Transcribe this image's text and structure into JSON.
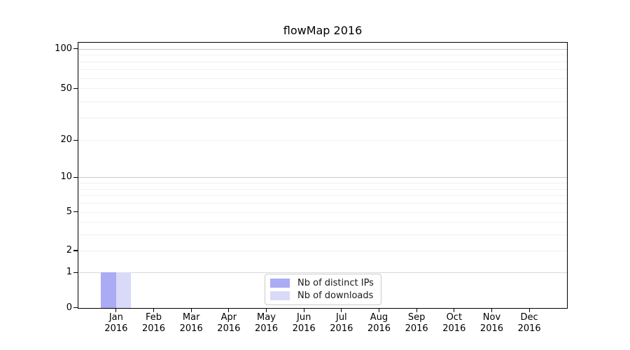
{
  "title": "flowMap 2016",
  "chart_data": {
    "type": "bar",
    "title": "flowMap 2016",
    "categories": [
      {
        "month": "Jan",
        "year": "2016"
      },
      {
        "month": "Feb",
        "year": "2016"
      },
      {
        "month": "Mar",
        "year": "2016"
      },
      {
        "month": "Apr",
        "year": "2016"
      },
      {
        "month": "May",
        "year": "2016"
      },
      {
        "month": "Jun",
        "year": "2016"
      },
      {
        "month": "Jul",
        "year": "2016"
      },
      {
        "month": "Aug",
        "year": "2016"
      },
      {
        "month": "Sep",
        "year": "2016"
      },
      {
        "month": "Oct",
        "year": "2016"
      },
      {
        "month": "Nov",
        "year": "2016"
      },
      {
        "month": "Dec",
        "year": "2016"
      }
    ],
    "series": [
      {
        "name": "Nb of distinct IPs",
        "color": "#aaaaf5",
        "values": [
          1,
          0,
          0,
          0,
          0,
          0,
          0,
          0,
          0,
          0,
          0,
          0
        ]
      },
      {
        "name": "Nb of downloads",
        "color": "#dadaf8",
        "values": [
          1,
          0,
          0,
          0,
          0,
          0,
          0,
          0,
          0,
          0,
          0,
          0
        ]
      }
    ],
    "y_axis": {
      "scale": "log-like (log of value+1)",
      "tick_values": [
        0,
        1,
        2,
        5,
        10,
        20,
        50,
        100
      ],
      "major_gridline_values": [
        1,
        10,
        100
      ],
      "minor_gridline_values": [
        2,
        3,
        4,
        5,
        6,
        7,
        8,
        9,
        20,
        30,
        40,
        50,
        60,
        70,
        80,
        90
      ]
    },
    "legend": {
      "position": "bottom-center"
    },
    "grid": true,
    "ylim": [
      0,
      112
    ]
  },
  "colors": {
    "bar_distinct_ips": "#aaaaf5",
    "bar_downloads": "#dadaf8",
    "major_grid": "#c9c9c9",
    "minor_grid": "#f0f0f0",
    "grid_at_one": "#d9d9d9",
    "axis": "#000000",
    "legend_border": "#cccccc",
    "text": "#000000",
    "background": "#ffffff"
  }
}
